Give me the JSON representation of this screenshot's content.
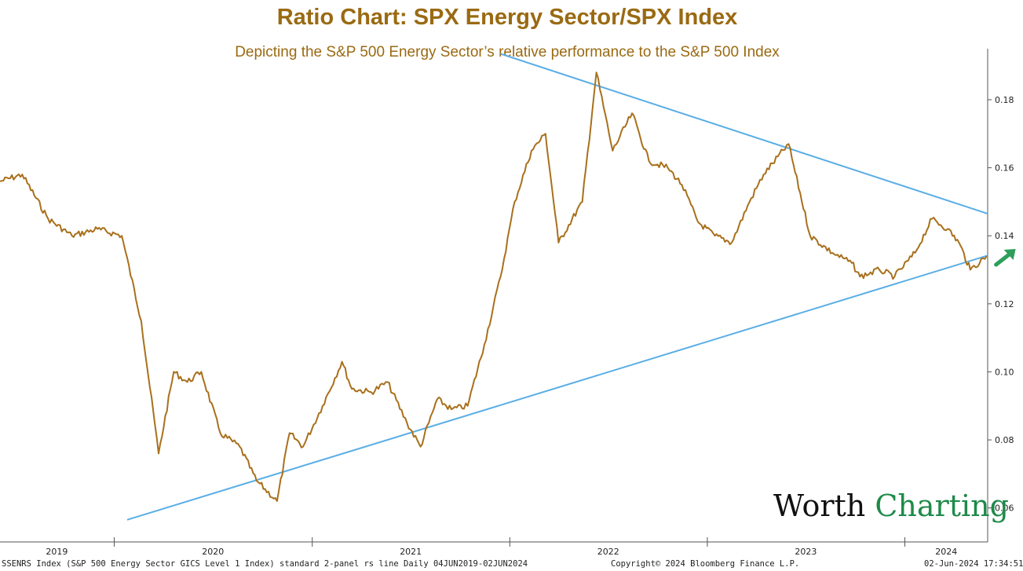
{
  "chart_data": {
    "type": "line",
    "title": "Ratio Chart: SPX Energy Sector/SPX Index",
    "subtitle": "Depicting the S&P 500 Energy Sector’s relative performance to the S&P 500 Index",
    "x_tick_labels": [
      "2019",
      "2020",
      "2021",
      "2022",
      "2023",
      "2024"
    ],
    "y_tick_labels": [
      "0.18",
      "0.16",
      "0.14",
      "0.12",
      "0.10",
      "0.08",
      "0.06"
    ],
    "ylim": [
      0.05,
      0.195
    ],
    "xlim": [
      "2019-06-04",
      "2024-06-02"
    ],
    "y_axis_position": "right",
    "grid": false,
    "series": [
      {
        "color": "#a8701c",
        "x": [
          "2019-06-04",
          "2019-07-15",
          "2019-09-01",
          "2019-10-15",
          "2019-12-01",
          "2020-01-15",
          "2020-02-20",
          "2020-03-23",
          "2020-04-20",
          "2020-05-15",
          "2020-06-10",
          "2020-07-15",
          "2020-08-20",
          "2020-09-20",
          "2020-10-28",
          "2020-11-20",
          "2020-12-15",
          "2021-01-20",
          "2021-02-25",
          "2021-03-15",
          "2021-04-20",
          "2021-05-20",
          "2021-06-25",
          "2021-07-20",
          "2021-08-20",
          "2021-09-15",
          "2021-10-15",
          "2021-11-15",
          "2021-12-15",
          "2022-01-10",
          "2022-02-10",
          "2022-03-08",
          "2022-04-01",
          "2022-05-15",
          "2022-06-10",
          "2022-07-10",
          "2022-08-15",
          "2022-09-15",
          "2022-10-20",
          "2022-11-15",
          "2022-12-15",
          "2023-01-15",
          "2023-02-15",
          "2023-03-20",
          "2023-04-15",
          "2023-05-31",
          "2023-07-10",
          "2023-08-20",
          "2023-09-25",
          "2023-10-10",
          "2023-11-15",
          "2023-12-13",
          "2024-01-20",
          "2024-02-20",
          "2024-03-20",
          "2024-04-10",
          "2024-05-01",
          "2024-05-31"
        ],
        "values": [
          0.156,
          0.158,
          0.145,
          0.14,
          0.142,
          0.14,
          0.115,
          0.076,
          0.1,
          0.097,
          0.1,
          0.082,
          0.078,
          0.068,
          0.062,
          0.082,
          0.078,
          0.09,
          0.103,
          0.095,
          0.094,
          0.097,
          0.085,
          0.078,
          0.092,
          0.089,
          0.09,
          0.108,
          0.128,
          0.15,
          0.165,
          0.17,
          0.138,
          0.15,
          0.188,
          0.165,
          0.176,
          0.162,
          0.16,
          0.155,
          0.144,
          0.14,
          0.138,
          0.15,
          0.158,
          0.167,
          0.14,
          0.135,
          0.132,
          0.128,
          0.13,
          0.128,
          0.135,
          0.145,
          0.142,
          0.138,
          0.13,
          0.134
        ]
      }
    ],
    "trendlines": [
      {
        "color": "#5aaee6",
        "x": [
          "2020-01-25",
          "2024-06-02"
        ],
        "values": [
          0.0565,
          0.1342
        ]
      },
      {
        "color": "#5aaee6",
        "x": [
          "2021-12-15",
          "2024-06-02"
        ],
        "values": [
          0.1935,
          0.1465
        ]
      }
    ],
    "annotations": [
      {
        "type": "arrow",
        "color": "#2e9e5b",
        "direction": "up-right"
      }
    ]
  },
  "footer": {
    "left": "SSENRS Index (S&P 500 Energy Sector GICS Level 1 Index) standard 2-panel rs line  Daily 04JUN2019-02JUN2024",
    "center": "Copyright© 2024 Bloomberg Finance L.P.",
    "right": "02-Jun-2024 17:34:51"
  },
  "logo": {
    "part1": "Worth",
    "part2": "Charting"
  }
}
